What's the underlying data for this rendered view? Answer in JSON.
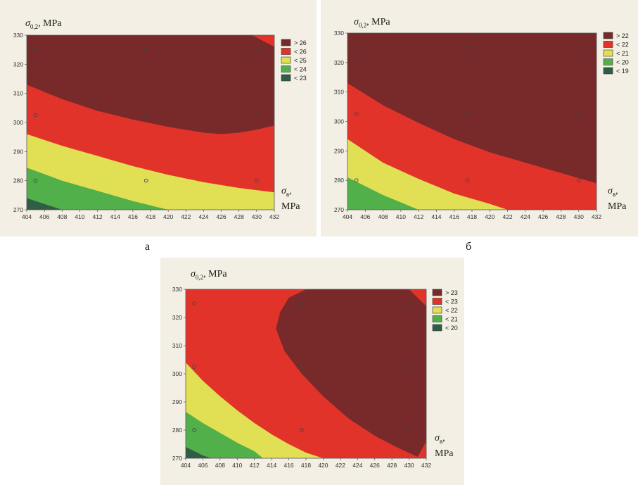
{
  "captions": {
    "a": "а",
    "b": "б"
  },
  "axis_titles": {
    "y_symbol": "σ",
    "y_sub": "0,2",
    "y_unit": ", MPa",
    "x_symbol": "σ",
    "x_sub": "в",
    "x_unit_line1": ",",
    "x_unit_line2": "MPa"
  },
  "colors": {
    "level5": "#782a2a",
    "level4": "#e2332b",
    "level3": "#e1df54",
    "level2": "#52b04b",
    "level1": "#2f5d47",
    "point": "#444444"
  },
  "chart_data": [
    {
      "id": "a",
      "type": "contour",
      "caption": "а",
      "xlabel": "σв, MPa",
      "ylabel": "σ0,2, MPa",
      "xlim": [
        404,
        432
      ],
      "ylim": [
        270,
        330
      ],
      "xticks": [
        404,
        406,
        408,
        410,
        412,
        414,
        416,
        418,
        420,
        422,
        424,
        426,
        428,
        430,
        432
      ],
      "yticks": [
        270,
        280,
        290,
        300,
        310,
        320,
        330
      ],
      "legend_position": "right",
      "legend": [
        "> 26",
        "< 26",
        "< 25",
        "< 24",
        "< 23"
      ],
      "points": [
        [
          405,
          325
        ],
        [
          405,
          302.5
        ],
        [
          405,
          280
        ],
        [
          417.5,
          325
        ],
        [
          417.5,
          302.5
        ],
        [
          417.5,
          280
        ],
        [
          430,
          325
        ],
        [
          430,
          302.5
        ],
        [
          430,
          280
        ]
      ],
      "boundaries": [
        {
          "between": [
            "> 26",
            "< 26"
          ],
          "points": [
            [
              404,
              313
            ],
            [
              408,
              308
            ],
            [
              412,
              304
            ],
            [
              416,
              301
            ],
            [
              420,
              298.5
            ],
            [
              424,
              296.5
            ],
            [
              426,
              296
            ],
            [
              428,
              296.5
            ],
            [
              430,
              297.5
            ],
            [
              432,
              299
            ]
          ]
        },
        {
          "between": [
            "< 26",
            "< 25"
          ],
          "points": [
            [
              404,
              296
            ],
            [
              408,
              292
            ],
            [
              412,
              288.5
            ],
            [
              416,
              285
            ],
            [
              420,
              282
            ],
            [
              424,
              279.5
            ],
            [
              428,
              277.5
            ],
            [
              432,
              276
            ]
          ]
        },
        {
          "between": [
            "< 25",
            "< 24"
          ],
          "points": [
            [
              404,
              284.5
            ],
            [
              408,
              280
            ],
            [
              412,
              276.5
            ],
            [
              416,
              273
            ],
            [
              420,
              270
            ]
          ]
        },
        {
          "between": [
            "< 24",
            "< 23"
          ],
          "points": [
            [
              404,
              274
            ],
            [
              406,
              272
            ],
            [
              408,
              270
            ]
          ]
        },
        {
          "between": [
            "< 26",
            "> 26 (corner)"
          ],
          "points": [
            [
              429.5,
              330
            ],
            [
              432,
              326
            ]
          ]
        }
      ]
    },
    {
      "id": "b",
      "type": "contour",
      "caption": "б",
      "xlabel": "σв, MPa",
      "ylabel": "σ0,2, MPa",
      "xlim": [
        404,
        432
      ],
      "ylim": [
        270,
        330
      ],
      "xticks": [
        404,
        406,
        408,
        410,
        412,
        414,
        416,
        418,
        420,
        422,
        424,
        426,
        428,
        430,
        432
      ],
      "yticks": [
        270,
        280,
        290,
        300,
        310,
        320,
        330
      ],
      "legend_position": "right",
      "legend": [
        "> 22",
        "< 22",
        "< 21",
        "< 20",
        "< 19"
      ],
      "points": [
        [
          405,
          325
        ],
        [
          405,
          302.5
        ],
        [
          405,
          280
        ],
        [
          417.5,
          325
        ],
        [
          417.5,
          302.5
        ],
        [
          417.5,
          280
        ],
        [
          430,
          325
        ],
        [
          430,
          302.5
        ],
        [
          430,
          280
        ]
      ],
      "boundaries": [
        {
          "between": [
            "> 22",
            "< 22"
          ],
          "points": [
            [
              404,
              313
            ],
            [
              408,
              305.5
            ],
            [
              412,
              299.5
            ],
            [
              416,
              294
            ],
            [
              420,
              289.5
            ],
            [
              424,
              286
            ],
            [
              428,
              282.5
            ],
            [
              432,
              279
            ]
          ]
        },
        {
          "between": [
            "< 22",
            "< 21"
          ],
          "points": [
            [
              404,
              294
            ],
            [
              408,
              286
            ],
            [
              412,
              280.5
            ],
            [
              416,
              275.5
            ],
            [
              420,
              272
            ],
            [
              422,
              270
            ]
          ]
        },
        {
          "between": [
            "< 21",
            "< 20"
          ],
          "points": [
            [
              404,
              281
            ],
            [
              406,
              278
            ],
            [
              408,
              275
            ],
            [
              410,
              272.5
            ],
            [
              412,
              270
            ]
          ]
        }
      ]
    },
    {
      "id": "c",
      "type": "contour",
      "caption": "",
      "xlabel": "σв, MPa",
      "ylabel": "σ0,2, MPa",
      "xlim": [
        404,
        432
      ],
      "ylim": [
        270,
        330
      ],
      "xticks": [
        404,
        406,
        408,
        410,
        412,
        414,
        416,
        418,
        420,
        422,
        424,
        426,
        428,
        430,
        432
      ],
      "yticks": [
        270,
        280,
        290,
        300,
        310,
        320,
        330
      ],
      "legend_position": "right",
      "legend": [
        "> 23",
        "< 23",
        "< 22",
        "< 21",
        "< 20"
      ],
      "points": [
        [
          405,
          325
        ],
        [
          405,
          302.5
        ],
        [
          405,
          280
        ],
        [
          417.5,
          325
        ],
        [
          417.5,
          302.5
        ],
        [
          417.5,
          280
        ],
        [
          430,
          325
        ],
        [
          430,
          302.5
        ],
        [
          430,
          280
        ]
      ],
      "boundaries": [
        {
          "between": [
            "> 23 (closed)",
            "< 23"
          ],
          "points": [
            [
              418,
              330
            ],
            [
              416,
              327
            ],
            [
              415,
              322
            ],
            [
              414.5,
              316
            ],
            [
              415.5,
              308
            ],
            [
              417.5,
              300
            ],
            [
              420,
              292
            ],
            [
              423,
              284
            ],
            [
              426,
              278
            ],
            [
              428.5,
              274
            ],
            [
              431,
              270.5
            ],
            [
              432,
              276
            ],
            [
              432,
              324
            ],
            [
              430,
              330
            ]
          ]
        },
        {
          "between": [
            "< 23",
            "< 22"
          ],
          "points": [
            [
              404,
              304
            ],
            [
              406,
              297.5
            ],
            [
              408,
              292
            ],
            [
              410,
              287
            ],
            [
              412,
              282.5
            ],
            [
              414,
              278.5
            ],
            [
              416,
              275
            ],
            [
              418,
              272
            ],
            [
              420,
              270
            ]
          ]
        },
        {
          "between": [
            "< 22",
            "< 21"
          ],
          "points": [
            [
              404,
              286.5
            ],
            [
              406,
              282.5
            ],
            [
              408,
              279
            ],
            [
              410,
              275.5
            ],
            [
              412,
              272.5
            ],
            [
              413,
              270
            ]
          ]
        },
        {
          "between": [
            "< 21",
            "< 20"
          ],
          "points": [
            [
              404,
              274
            ],
            [
              406,
              271
            ],
            [
              407,
              270
            ]
          ]
        }
      ]
    }
  ]
}
